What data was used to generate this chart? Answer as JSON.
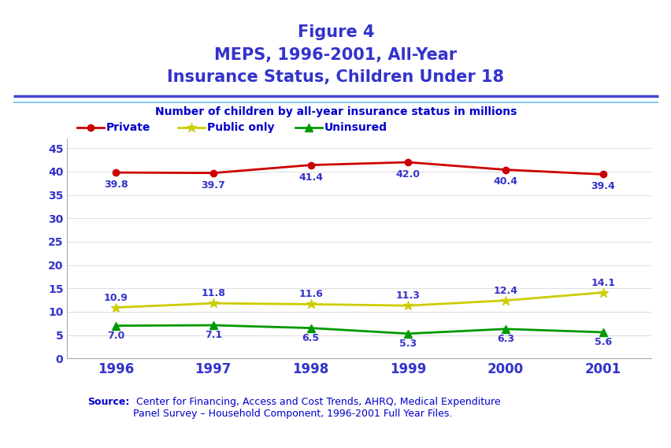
{
  "title_line1": "Figure 4",
  "title_line2": "MEPS, 1996-2001, All-Year",
  "title_line3": "Insurance Status, Children Under 18",
  "title_color": "#3333cc",
  "subtitle": "Number of children by all-year insurance status in millions",
  "subtitle_color": "#0000cc",
  "years": [
    1996,
    1997,
    1998,
    1999,
    2000,
    2001
  ],
  "private": [
    39.8,
    39.7,
    41.4,
    42.0,
    40.4,
    39.4
  ],
  "public": [
    10.9,
    11.8,
    11.6,
    11.3,
    12.4,
    14.1
  ],
  "uninsured": [
    7.0,
    7.1,
    6.5,
    5.3,
    6.3,
    5.6
  ],
  "private_color": "#cc0000",
  "public_color": "#cccc00",
  "uninsured_color": "#009900",
  "label_color": "#3333cc",
  "legend_label_color": "#0000cc",
  "private_label": "Private",
  "public_label": "Public only",
  "uninsured_label": "Uninsured",
  "ylim": [
    0,
    47
  ],
  "yticks": [
    0,
    5,
    10,
    15,
    20,
    25,
    30,
    35,
    40,
    45
  ],
  "ytick_color": "#3333cc",
  "xtick_color": "#3333cc",
  "background_color": "#ffffff",
  "divider_color1": "#4444cc",
  "divider_color2": "#87ceeb",
  "source_bold": "Source:",
  "source_text": " Center for Financing, Access and Cost Trends, AHRQ, Medical Expenditure\nPanel Survey – Household Component, 1996-2001 Full Year Files.",
  "source_color": "#0000cc"
}
